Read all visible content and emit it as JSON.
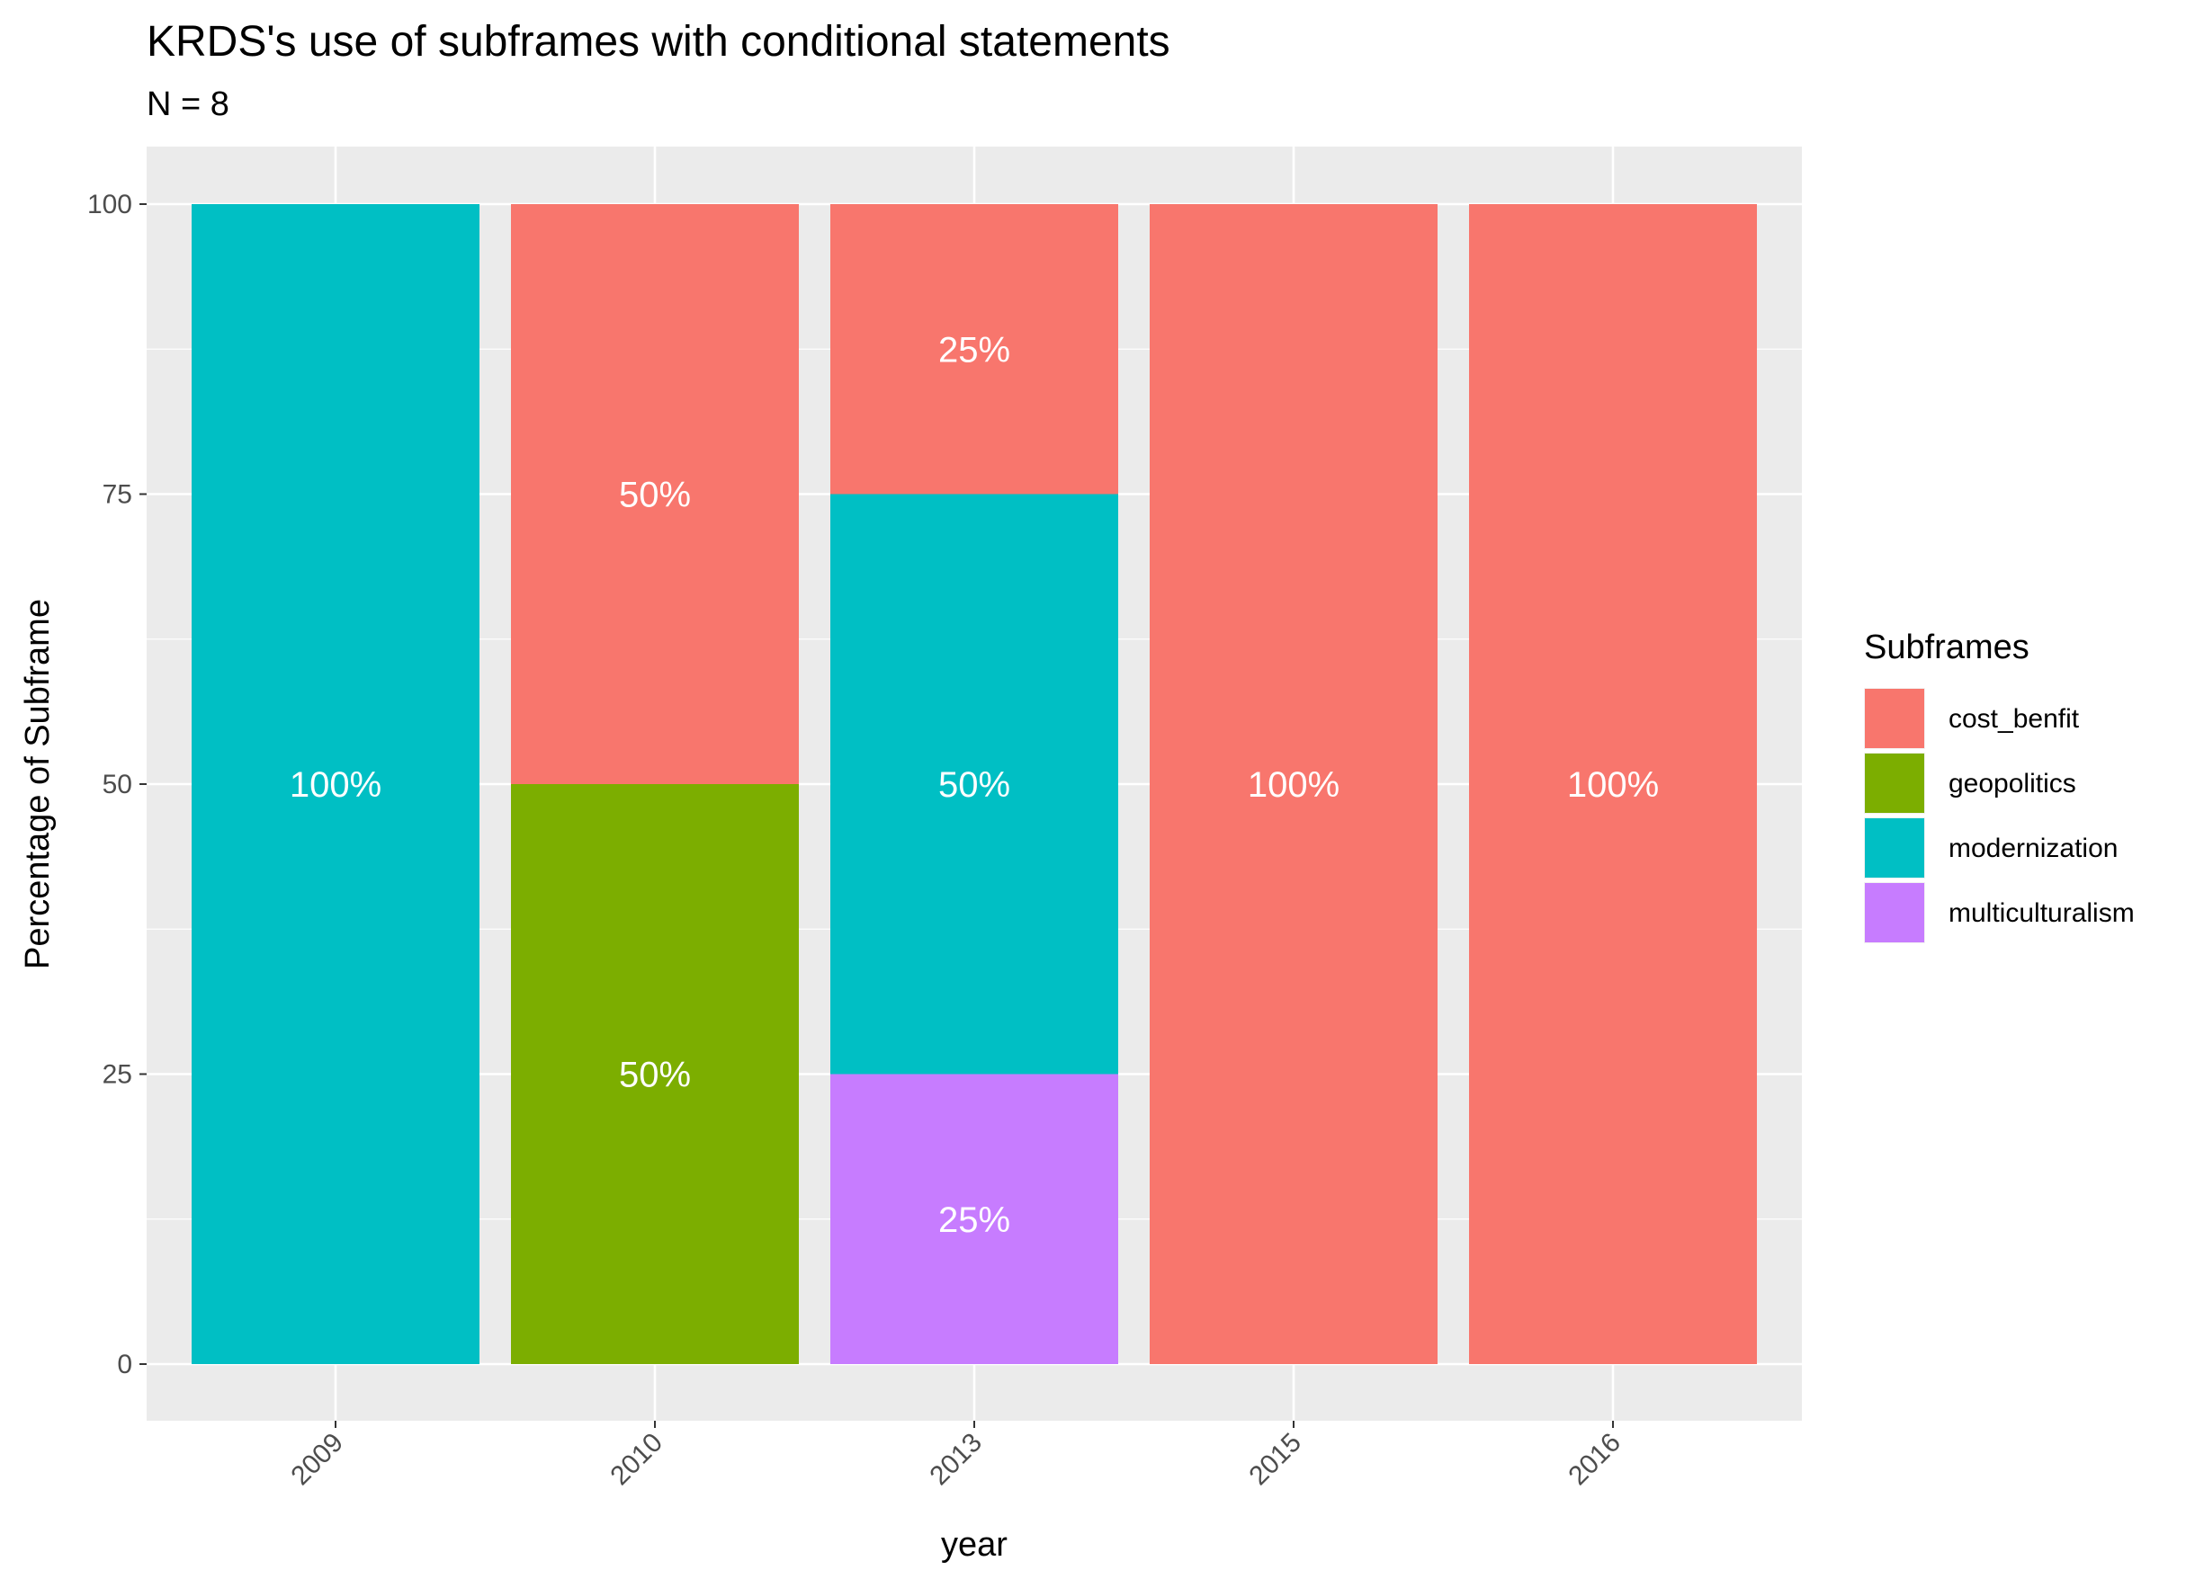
{
  "chart_data": {
    "type": "bar",
    "stacked": true,
    "title": "KRDS's use of subframes with conditional statements",
    "subtitle": "N = 8",
    "xlabel": "year",
    "ylabel": "Percentage of Subframe",
    "categories": [
      "2009",
      "2010",
      "2013",
      "2015",
      "2016"
    ],
    "ylim": [
      0,
      100
    ],
    "yticks": [
      0,
      25,
      50,
      75,
      100
    ],
    "grid": true,
    "legend": {
      "title": "Subframes",
      "placement": "right",
      "entries": [
        "cost_benfit",
        "geopolitics",
        "modernization",
        "multiculturalism"
      ]
    },
    "series": [
      {
        "name": "cost_benfit",
        "color": "#F8766D",
        "values": [
          0,
          50,
          25,
          100,
          100
        ],
        "labels": [
          "",
          "50%",
          "25%",
          "100%",
          "100%"
        ]
      },
      {
        "name": "geopolitics",
        "color": "#7CAE00",
        "values": [
          0,
          50,
          0,
          0,
          0
        ],
        "labels": [
          "",
          "50%",
          "",
          "",
          ""
        ]
      },
      {
        "name": "modernization",
        "color": "#00BFC4",
        "values": [
          100,
          0,
          50,
          0,
          0
        ],
        "labels": [
          "100%",
          "",
          "50%",
          "",
          ""
        ]
      },
      {
        "name": "multiculturalism",
        "color": "#C77CFF",
        "values": [
          0,
          0,
          25,
          0,
          0
        ],
        "labels": [
          "",
          "",
          "25%",
          "",
          ""
        ]
      }
    ]
  }
}
